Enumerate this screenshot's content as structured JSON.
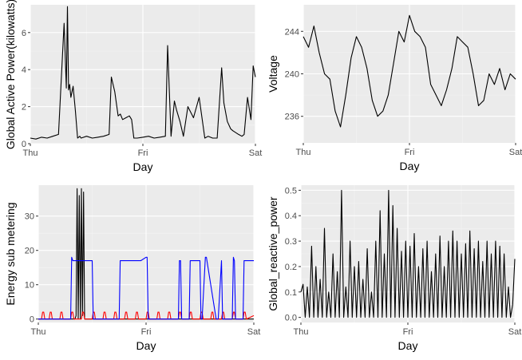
{
  "chart_data": [
    {
      "id": "p1",
      "type": "line",
      "xlabel": "Day",
      "ylabel": "Global Active Power(kilowatts)",
      "x_ticks": [
        "Thu",
        "Fri",
        "Sat"
      ],
      "xlim": [
        0,
        2
      ],
      "ylim": [
        0,
        7.5
      ],
      "y_ticks": [
        0,
        2,
        4,
        6
      ],
      "grid": true,
      "series": [
        {
          "color": "#000000",
          "x": [
            0,
            0.05,
            0.1,
            0.15,
            0.2,
            0.25,
            0.3,
            0.32,
            0.33,
            0.34,
            0.35,
            0.36,
            0.38,
            0.4,
            0.42,
            0.44,
            0.45,
            0.5,
            0.55,
            0.6,
            0.65,
            0.7,
            0.72,
            0.75,
            0.78,
            0.8,
            0.82,
            0.85,
            0.88,
            0.9,
            0.92,
            0.95,
            1.0,
            1.05,
            1.1,
            1.15,
            1.2,
            1.22,
            1.25,
            1.28,
            1.3,
            1.33,
            1.36,
            1.4,
            1.45,
            1.5,
            1.55,
            1.58,
            1.62,
            1.66,
            1.7,
            1.72,
            1.75,
            1.78,
            1.8,
            1.85,
            1.88,
            1.9,
            1.93,
            1.96,
            1.98,
            2.0
          ],
          "y": [
            0.3,
            0.25,
            0.35,
            0.3,
            0.4,
            0.5,
            6.5,
            3.0,
            7.4,
            2.9,
            3.2,
            2.5,
            3.1,
            1.8,
            0.3,
            0.4,
            0.3,
            0.4,
            0.3,
            0.35,
            0.4,
            0.5,
            3.6,
            2.8,
            1.5,
            1.6,
            1.3,
            1.4,
            1.5,
            1.3,
            0.3,
            0.3,
            0.35,
            0.4,
            0.3,
            0.35,
            0.4,
            5.3,
            0.4,
            2.3,
            1.8,
            1.2,
            0.4,
            2.0,
            1.4,
            2.5,
            0.3,
            0.4,
            0.3,
            0.3,
            4.1,
            2.2,
            1.2,
            0.8,
            0.7,
            0.5,
            0.4,
            0.5,
            2.5,
            1.3,
            4.2,
            3.6
          ]
        }
      ]
    },
    {
      "id": "p2",
      "type": "line",
      "xlabel": "Day",
      "ylabel": "Voltage",
      "x_ticks": [
        "Thu",
        "Fri",
        "Sat"
      ],
      "xlim": [
        0,
        2
      ],
      "ylim": [
        233.5,
        246.5
      ],
      "y_ticks": [
        236,
        240,
        244
      ],
      "grid": true,
      "series": [
        {
          "color": "#000000",
          "x": [
            0,
            0.05,
            0.1,
            0.15,
            0.2,
            0.25,
            0.3,
            0.35,
            0.4,
            0.45,
            0.5,
            0.55,
            0.6,
            0.65,
            0.7,
            0.75,
            0.8,
            0.85,
            0.9,
            0.95,
            1.0,
            1.05,
            1.1,
            1.15,
            1.2,
            1.25,
            1.3,
            1.35,
            1.4,
            1.45,
            1.5,
            1.55,
            1.6,
            1.65,
            1.7,
            1.75,
            1.8,
            1.85,
            1.9,
            1.95,
            2.0
          ],
          "y": [
            243.5,
            242.5,
            244.5,
            242.0,
            240.0,
            239.5,
            236.5,
            235.0,
            238.0,
            241.5,
            243.5,
            242.5,
            240.5,
            237.5,
            236.0,
            236.5,
            238.0,
            241.0,
            244.0,
            243.0,
            245.5,
            244.0,
            243.5,
            242.5,
            239.0,
            238.0,
            237.0,
            238.5,
            240.5,
            243.5,
            243.0,
            242.5,
            240.0,
            237.0,
            237.5,
            240.0,
            239.0,
            240.5,
            238.5,
            240.0,
            239.5
          ]
        }
      ]
    },
    {
      "id": "p3",
      "type": "line",
      "xlabel": "Day",
      "ylabel": "Energy sub metering",
      "x_ticks": [
        "Thu",
        "Fri",
        "Sat"
      ],
      "xlim": [
        0,
        2
      ],
      "ylim": [
        -1,
        39
      ],
      "y_ticks": [
        0,
        10,
        20,
        30
      ],
      "grid": true,
      "series": [
        {
          "color": "#000000",
          "x": [
            0,
            0.3,
            0.34,
            0.35,
            0.36,
            0.37,
            0.38,
            0.39,
            0.4,
            0.41,
            0.42,
            0.43,
            0.44,
            0.5,
            1.0,
            1.5,
            2.0
          ],
          "y": [
            0,
            0,
            0,
            1,
            38,
            0,
            36,
            0,
            38,
            1,
            37,
            0,
            0,
            0,
            0,
            0,
            0
          ]
        },
        {
          "color": "#ff0000",
          "x": [
            0,
            0.03,
            0.04,
            0.05,
            0.06,
            0.1,
            0.11,
            0.12,
            0.13,
            0.2,
            0.21,
            0.22,
            0.23,
            0.3,
            0.31,
            0.32,
            0.33,
            0.4,
            0.41,
            0.42,
            0.43,
            0.5,
            0.51,
            0.52,
            0.53,
            0.6,
            0.61,
            0.62,
            0.63,
            0.7,
            0.71,
            0.72,
            0.73,
            0.8,
            0.81,
            0.82,
            0.83,
            0.9,
            0.91,
            0.92,
            0.93,
            1.0,
            1.01,
            1.02,
            1.03,
            1.1,
            1.11,
            1.12,
            1.13,
            1.2,
            1.21,
            1.22,
            1.23,
            1.3,
            1.31,
            1.32,
            1.33,
            1.4,
            1.41,
            1.42,
            1.43,
            1.5,
            1.51,
            1.52,
            1.53,
            1.6,
            1.61,
            1.62,
            1.63,
            1.7,
            1.71,
            1.72,
            1.73,
            1.8,
            1.81,
            1.82,
            1.83,
            1.9,
            1.91,
            1.92,
            1.93,
            2.0
          ],
          "y": [
            0,
            0,
            2,
            2,
            0,
            0,
            2,
            2,
            0,
            0,
            2,
            2,
            0,
            0,
            2,
            2,
            0,
            0,
            2,
            2,
            0,
            0,
            2,
            2,
            0,
            0,
            2,
            2,
            0,
            0,
            2,
            2,
            0,
            0,
            2,
            2,
            0,
            0,
            2,
            2,
            0,
            0,
            2,
            2,
            0,
            0,
            2,
            2,
            0,
            0,
            2,
            2,
            0,
            0,
            2,
            2,
            0,
            0,
            2,
            2,
            0,
            0,
            2,
            2,
            0,
            0,
            2,
            2,
            0,
            0,
            2,
            2,
            0,
            0,
            2,
            2,
            0,
            0,
            2,
            2,
            0,
            1
          ]
        },
        {
          "color": "#0000ff",
          "x": [
            0,
            0.3,
            0.31,
            0.32,
            0.4,
            0.45,
            0.5,
            0.51,
            0.6,
            0.75,
            0.76,
            0.77,
            0.95,
            1.0,
            1.01,
            1.02,
            1.3,
            1.31,
            1.32,
            1.33,
            1.4,
            1.41,
            1.5,
            1.51,
            1.52,
            1.55,
            1.56,
            1.65,
            1.66,
            1.67,
            1.7,
            1.71,
            1.72,
            1.73,
            1.8,
            1.81,
            1.82,
            1.83,
            1.9,
            1.91,
            1.92,
            1.93,
            2.0
          ],
          "y": [
            0,
            0,
            18,
            17,
            17,
            17,
            17,
            0,
            0,
            0,
            17,
            17,
            17,
            18,
            18,
            0,
            0,
            17,
            17,
            0,
            0,
            17,
            17,
            0,
            0,
            18,
            18,
            0,
            0,
            0,
            17,
            0,
            0,
            0,
            0,
            18,
            17,
            0,
            0,
            17,
            17,
            17,
            17
          ]
        }
      ]
    },
    {
      "id": "p4",
      "type": "line",
      "xlabel": "Day",
      "ylabel": "Global_reactive_power",
      "x_ticks": [
        "Thu",
        "Fri",
        "Sat"
      ],
      "xlim": [
        0,
        2
      ],
      "ylim": [
        -0.02,
        0.52
      ],
      "y_ticks": [
        0.0,
        0.1,
        0.2,
        0.3,
        0.4,
        0.5
      ],
      "y_tick_labels": [
        "0.0",
        "0.1",
        "0.2",
        "0.3",
        "0.4",
        "0.5"
      ],
      "grid": true,
      "series": [
        {
          "color": "#000000",
          "x": [
            0,
            0.02,
            0.04,
            0.06,
            0.08,
            0.1,
            0.12,
            0.14,
            0.16,
            0.18,
            0.2,
            0.22,
            0.24,
            0.26,
            0.28,
            0.3,
            0.32,
            0.34,
            0.36,
            0.38,
            0.4,
            0.42,
            0.44,
            0.46,
            0.48,
            0.5,
            0.52,
            0.54,
            0.56,
            0.58,
            0.6,
            0.62,
            0.64,
            0.66,
            0.68,
            0.7,
            0.72,
            0.74,
            0.76,
            0.78,
            0.8,
            0.82,
            0.84,
            0.86,
            0.88,
            0.9,
            0.92,
            0.94,
            0.96,
            0.98,
            1.0,
            1.02,
            1.04,
            1.06,
            1.08,
            1.1,
            1.12,
            1.14,
            1.16,
            1.18,
            1.2,
            1.22,
            1.24,
            1.26,
            1.28,
            1.3,
            1.32,
            1.34,
            1.36,
            1.38,
            1.4,
            1.42,
            1.44,
            1.46,
            1.48,
            1.5,
            1.52,
            1.54,
            1.56,
            1.58,
            1.6,
            1.62,
            1.64,
            1.66,
            1.68,
            1.7,
            1.72,
            1.74,
            1.76,
            1.78,
            1.8,
            1.82,
            1.84,
            1.86,
            1.88,
            1.9,
            1.92,
            1.94,
            1.96,
            1.98,
            2.0
          ],
          "y": [
            0.1,
            0.13,
            0.0,
            0.12,
            0.0,
            0.28,
            0.0,
            0.2,
            0.0,
            0.15,
            0.0,
            0.35,
            0.0,
            0.1,
            0.0,
            0.25,
            0.0,
            0.18,
            0.0,
            0.5,
            0.0,
            0.12,
            0.0,
            0.3,
            0.0,
            0.2,
            0.0,
            0.22,
            0.0,
            0.15,
            0.0,
            0.27,
            0.0,
            0.1,
            0.0,
            0.3,
            0.0,
            0.42,
            0.0,
            0.25,
            0.0,
            0.5,
            0.0,
            0.44,
            0.0,
            0.35,
            0.0,
            0.26,
            0.0,
            0.3,
            0.0,
            0.28,
            0.0,
            0.33,
            0.0,
            0.2,
            0.0,
            0.27,
            0.0,
            0.3,
            0.0,
            0.18,
            0.0,
            0.25,
            0.0,
            0.32,
            0.0,
            0.2,
            0.0,
            0.3,
            0.0,
            0.34,
            0.0,
            0.3,
            0.0,
            0.25,
            0.0,
            0.29,
            0.0,
            0.34,
            0.0,
            0.27,
            0.0,
            0.3,
            0.0,
            0.22,
            0.0,
            0.3,
            0.0,
            0.25,
            0.0,
            0.3,
            0.0,
            0.28,
            0.0,
            0.25,
            0.0,
            0.12,
            0.0,
            0.05,
            0.23
          ]
        }
      ]
    }
  ]
}
